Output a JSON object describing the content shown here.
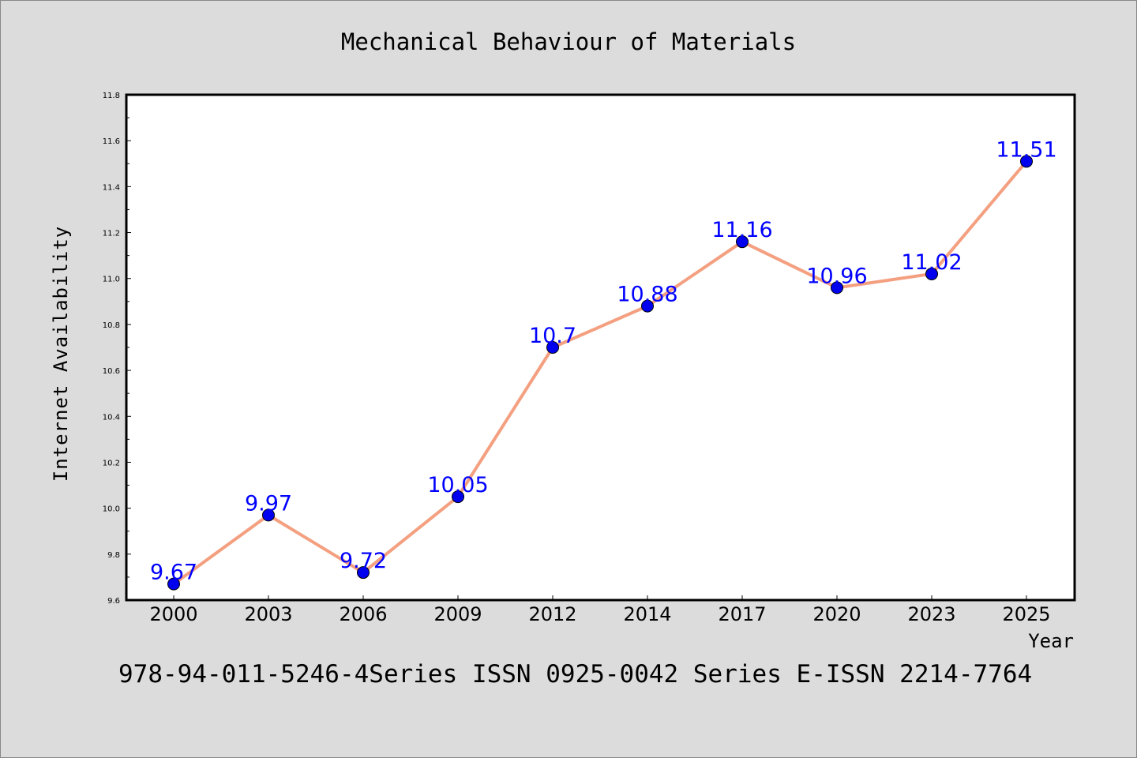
{
  "chart_data": {
    "type": "line",
    "title": "Mechanical Behaviour of Materials",
    "xlabel": "Year",
    "ylabel": "Internet Availability",
    "categories": [
      "2000",
      "2003",
      "2006",
      "2009",
      "2012",
      "2014",
      "2017",
      "2020",
      "2023",
      "2025"
    ],
    "series": [
      {
        "values": [
          9.67,
          9.97,
          9.72,
          10.05,
          10.7,
          10.88,
          11.16,
          10.96,
          11.02,
          11.51
        ]
      }
    ],
    "data_labels": [
      "9.67",
      "9.97",
      "9.72",
      "10.05",
      "10.7",
      "10.88",
      "11.16",
      "10.96",
      "11.02",
      "11.51"
    ],
    "ylim": [
      9.6,
      11.8
    ],
    "yticks": [
      "9.6",
      "9.8",
      "10.0",
      "10.2",
      "10.4",
      "10.6",
      "10.8",
      "11.0",
      "11.2",
      "11.4",
      "11.6",
      "11.8"
    ],
    "grid": false,
    "legend": "none",
    "colors": {
      "line": "#f4a080",
      "marker": "#0000ee",
      "label": "#0000ff",
      "background": "#dcdcdc",
      "plot_area": "#ffffff"
    }
  },
  "caption": "978-94-011-5246-4Series ISSN 0925-0042 Series E-ISSN 2214-7764"
}
